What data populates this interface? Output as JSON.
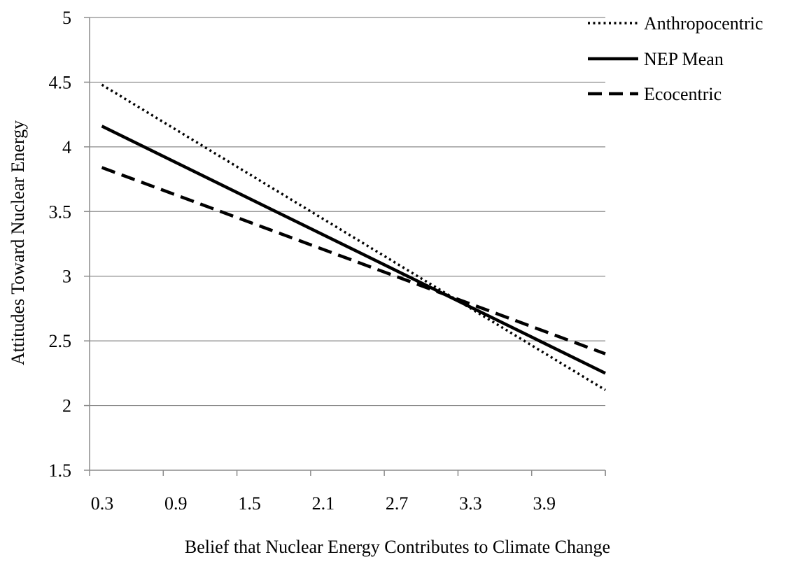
{
  "chart_data": {
    "type": "line",
    "xlabel": "Belief that Nuclear Energy Contributes to Climate Change",
    "ylabel": "Attitudes Toward Nuclear Energy",
    "ylim": [
      1.5,
      5
    ],
    "xlim": [
      0.3,
      4.5
    ],
    "x_ticks": [
      "0.3",
      "0.9",
      "1.5",
      "2.1",
      "2.7",
      "3.3",
      "3.9"
    ],
    "y_ticks": [
      "1.5",
      "2",
      "2.5",
      "3",
      "3.5",
      "4",
      "4.5",
      "5"
    ],
    "grid": "horizontal",
    "legend_position": "top-right",
    "series": [
      {
        "name": "Anthropocentric",
        "style": "dotted",
        "x": [
          0.4,
          4.5
        ],
        "values": [
          4.48,
          2.12
        ]
      },
      {
        "name": "NEP Mean",
        "style": "solid",
        "x": [
          0.4,
          4.5
        ],
        "values": [
          4.16,
          2.25
        ]
      },
      {
        "name": "Ecocentric",
        "style": "dashed",
        "x": [
          0.4,
          4.5
        ],
        "values": [
          3.84,
          2.4
        ]
      }
    ]
  }
}
